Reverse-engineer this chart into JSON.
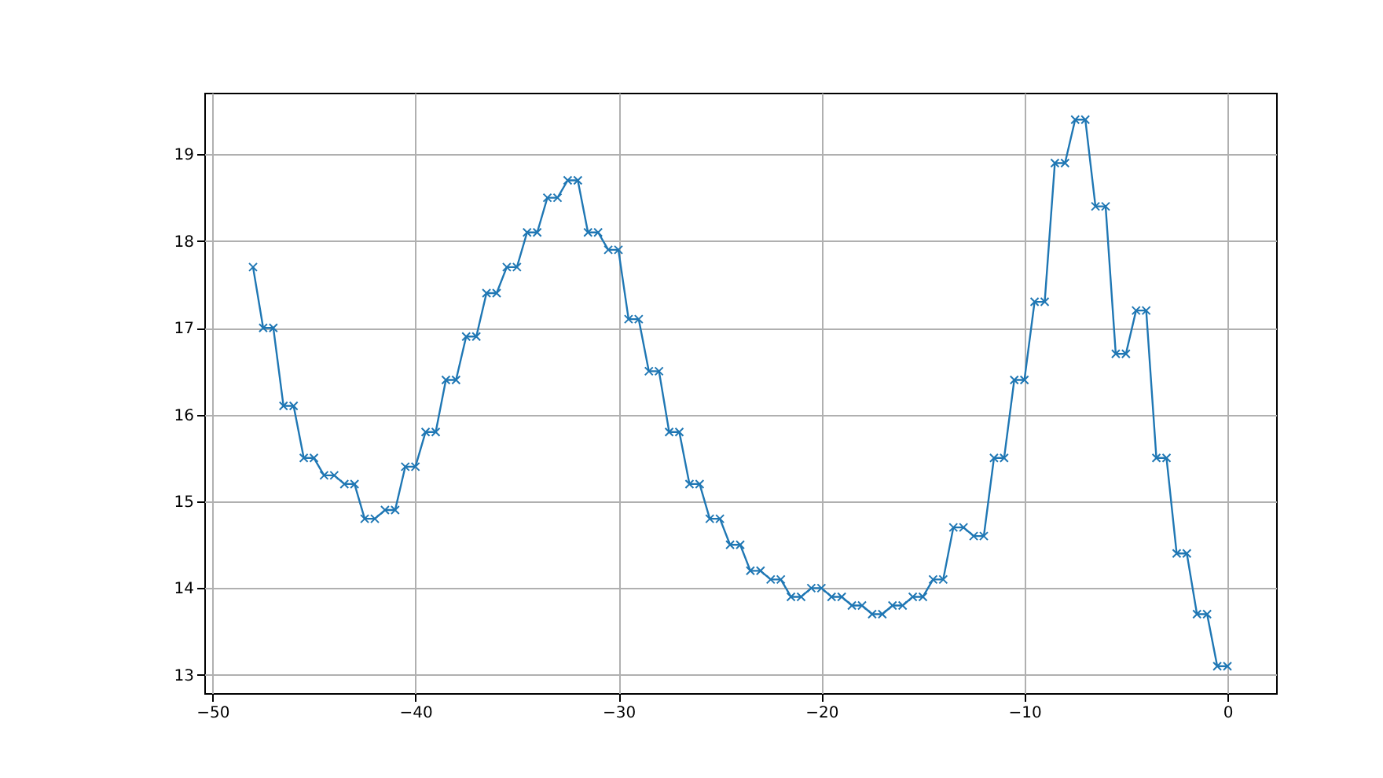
{
  "chart_data": {
    "type": "line",
    "x": [
      -48,
      -47.5,
      -47,
      -46.5,
      -46,
      -45.5,
      -45,
      -44.5,
      -44,
      -43.5,
      -43,
      -42.5,
      -42,
      -41.5,
      -41,
      -40.5,
      -40,
      -39.5,
      -39,
      -38.5,
      -38,
      -37.5,
      -37,
      -36.5,
      -36,
      -35.5,
      -35,
      -34.5,
      -34,
      -33.5,
      -33,
      -32.5,
      -32,
      -31.5,
      -31,
      -30.5,
      -30,
      -29.5,
      -29,
      -28.5,
      -28,
      -27.5,
      -27,
      -26.5,
      -26,
      -25.5,
      -25,
      -24.5,
      -24,
      -23.5,
      -23,
      -22.5,
      -22,
      -21.5,
      -21,
      -20.5,
      -20,
      -19.5,
      -19,
      -18.5,
      -18,
      -17.5,
      -17,
      -16.5,
      -16,
      -15.5,
      -15,
      -14.5,
      -14,
      -13.5,
      -13,
      -12.5,
      -12,
      -11.5,
      -11,
      -10.5,
      -10,
      -9.5,
      -9,
      -8.5,
      -8,
      -7.5,
      -7,
      -6.5,
      -6,
      -5.5,
      -5,
      -4.5,
      -4,
      -3.5,
      -3,
      -2.5,
      -2,
      -1.5,
      -1,
      -0.5,
      0
    ],
    "series": [
      {
        "color": "#1f77b4",
        "values": [
          17.7,
          17.0,
          17.0,
          16.1,
          16.1,
          15.5,
          15.5,
          15.3,
          15.3,
          15.2,
          15.2,
          14.8,
          14.8,
          14.9,
          14.9,
          15.4,
          15.4,
          15.8,
          15.8,
          16.4,
          16.4,
          16.9,
          16.9,
          17.4,
          17.4,
          17.7,
          17.7,
          18.1,
          18.1,
          18.5,
          18.5,
          18.7,
          18.7,
          18.1,
          18.1,
          17.9,
          17.9,
          17.1,
          17.1,
          16.5,
          16.5,
          15.8,
          15.8,
          15.2,
          15.2,
          14.8,
          14.8,
          14.5,
          14.5,
          14.2,
          14.2,
          14.1,
          14.1,
          13.9,
          13.9,
          14.0,
          14.0,
          13.9,
          13.9,
          13.8,
          13.8,
          13.7,
          13.7,
          13.8,
          13.8,
          13.9,
          13.9,
          14.1,
          14.1,
          14.7,
          14.7,
          14.6,
          14.6,
          15.5,
          15.5,
          16.4,
          16.4,
          17.3,
          17.3,
          18.9,
          18.9,
          19.4,
          19.4,
          18.4,
          18.4,
          16.7,
          16.7,
          17.2,
          17.2,
          15.5,
          15.5,
          14.4,
          14.4,
          13.7,
          13.7,
          13.1,
          13.1
        ]
      }
    ],
    "xlim": [
      -50.4,
      2.4
    ],
    "xticks": [
      -50,
      -40,
      -30,
      -20,
      -10,
      0
    ],
    "ylim": [
      12.79,
      19.71
    ],
    "yticks": [
      13,
      14,
      15,
      16,
      17,
      18,
      19
    ],
    "grid": true,
    "marker": "cross",
    "line_style": "solid"
  }
}
